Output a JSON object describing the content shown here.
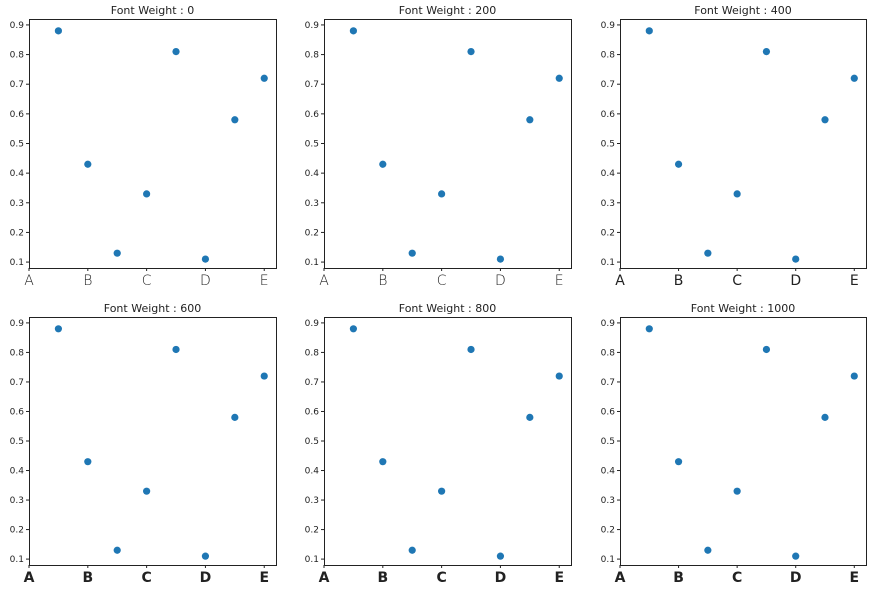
{
  "chart_data": [
    {
      "type": "scatter",
      "title": "Font Weight : 0",
      "font_weight": 0,
      "x": [
        0.5,
        1.0,
        1.5,
        2.0,
        2.5,
        3.0,
        3.5,
        4.0
      ],
      "y": [
        0.88,
        0.43,
        0.13,
        0.33,
        0.81,
        0.11,
        0.58,
        0.72
      ],
      "xticks": [
        "A",
        "B",
        "C",
        "D",
        "E"
      ],
      "yticks": [
        "0.1",
        "0.2",
        "0.3",
        "0.4",
        "0.5",
        "0.6",
        "0.7",
        "0.8",
        "0.9"
      ],
      "xlim": [
        0,
        4.2
      ],
      "ylim": [
        0.08,
        0.92
      ],
      "color": "#1f77b4",
      "grid": false
    },
    {
      "type": "scatter",
      "title": "Font Weight : 200",
      "font_weight": 200,
      "x": [
        0.5,
        1.0,
        1.5,
        2.0,
        2.5,
        3.0,
        3.5,
        4.0
      ],
      "y": [
        0.88,
        0.43,
        0.13,
        0.33,
        0.81,
        0.11,
        0.58,
        0.72
      ],
      "xticks": [
        "A",
        "B",
        "C",
        "D",
        "E"
      ],
      "yticks": [
        "0.1",
        "0.2",
        "0.3",
        "0.4",
        "0.5",
        "0.6",
        "0.7",
        "0.8",
        "0.9"
      ],
      "xlim": [
        0,
        4.2
      ],
      "ylim": [
        0.08,
        0.92
      ],
      "color": "#1f77b4",
      "grid": false
    },
    {
      "type": "scatter",
      "title": "Font Weight : 400",
      "font_weight": 400,
      "x": [
        0.5,
        1.0,
        1.5,
        2.0,
        2.5,
        3.0,
        3.5,
        4.0
      ],
      "y": [
        0.88,
        0.43,
        0.13,
        0.33,
        0.81,
        0.11,
        0.58,
        0.72
      ],
      "xticks": [
        "A",
        "B",
        "C",
        "D",
        "E"
      ],
      "yticks": [
        "0.1",
        "0.2",
        "0.3",
        "0.4",
        "0.5",
        "0.6",
        "0.7",
        "0.8",
        "0.9"
      ],
      "xlim": [
        0,
        4.2
      ],
      "ylim": [
        0.08,
        0.92
      ],
      "color": "#1f77b4",
      "grid": false
    },
    {
      "type": "scatter",
      "title": "Font Weight : 600",
      "font_weight": 600,
      "x": [
        0.5,
        1.0,
        1.5,
        2.0,
        2.5,
        3.0,
        3.5,
        4.0
      ],
      "y": [
        0.88,
        0.43,
        0.13,
        0.33,
        0.81,
        0.11,
        0.58,
        0.72
      ],
      "xticks": [
        "A",
        "B",
        "C",
        "D",
        "E"
      ],
      "yticks": [
        "0.1",
        "0.2",
        "0.3",
        "0.4",
        "0.5",
        "0.6",
        "0.7",
        "0.8",
        "0.9"
      ],
      "xlim": [
        0,
        4.2
      ],
      "ylim": [
        0.08,
        0.92
      ],
      "color": "#1f77b4",
      "grid": false
    },
    {
      "type": "scatter",
      "title": "Font Weight : 800",
      "font_weight": 800,
      "x": [
        0.5,
        1.0,
        1.5,
        2.0,
        2.5,
        3.0,
        3.5,
        4.0
      ],
      "y": [
        0.88,
        0.43,
        0.13,
        0.33,
        0.81,
        0.11,
        0.58,
        0.72
      ],
      "xticks": [
        "A",
        "B",
        "C",
        "D",
        "E"
      ],
      "yticks": [
        "0.1",
        "0.2",
        "0.3",
        "0.4",
        "0.5",
        "0.6",
        "0.7",
        "0.8",
        "0.9"
      ],
      "xlim": [
        0,
        4.2
      ],
      "ylim": [
        0.08,
        0.92
      ],
      "color": "#1f77b4",
      "grid": false
    },
    {
      "type": "scatter",
      "title": "Font Weight : 1000",
      "font_weight": 1000,
      "x": [
        0.5,
        1.0,
        1.5,
        2.0,
        2.5,
        3.0,
        3.5,
        4.0
      ],
      "y": [
        0.88,
        0.43,
        0.13,
        0.33,
        0.81,
        0.11,
        0.58,
        0.72
      ],
      "xticks": [
        "A",
        "B",
        "C",
        "D",
        "E"
      ],
      "yticks": [
        "0.1",
        "0.2",
        "0.3",
        "0.4",
        "0.5",
        "0.6",
        "0.7",
        "0.8",
        "0.9"
      ],
      "xlim": [
        0,
        4.2
      ],
      "ylim": [
        0.08,
        0.92
      ],
      "color": "#1f77b4",
      "grid": false
    }
  ]
}
